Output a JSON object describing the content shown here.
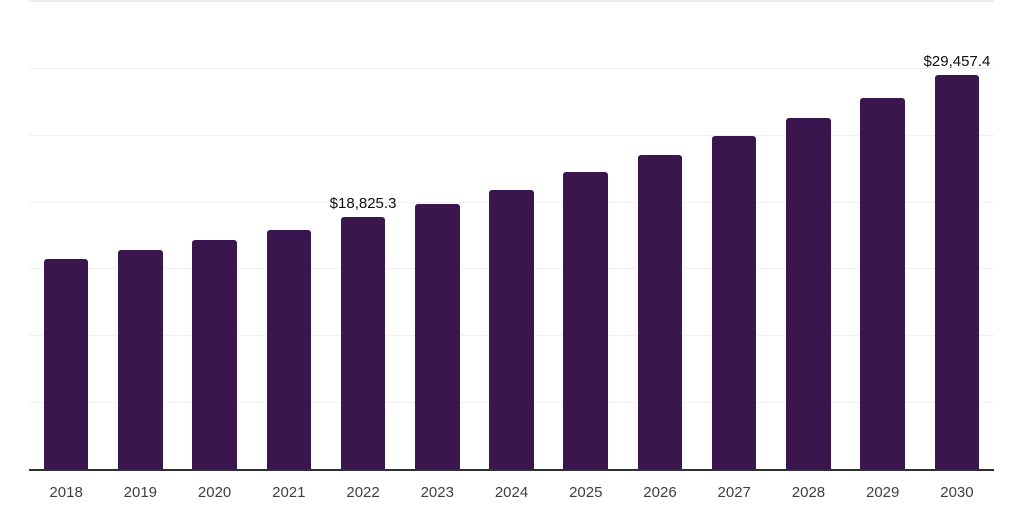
{
  "chart_data": {
    "type": "bar",
    "categories": [
      "2018",
      "2019",
      "2020",
      "2021",
      "2022",
      "2023",
      "2024",
      "2025",
      "2026",
      "2027",
      "2028",
      "2029",
      "2030"
    ],
    "values": [
      15700,
      16400,
      17100,
      17900,
      18825.3,
      19850,
      20900,
      22200,
      23460,
      24930,
      26230,
      27750,
      29457.4
    ],
    "value_labels": [
      null,
      null,
      null,
      null,
      "$18,825.3",
      null,
      null,
      null,
      null,
      null,
      null,
      null,
      "$29,457.4"
    ],
    "labeled_points": [
      {
        "category": "2022",
        "label": "$18,825.3",
        "value": 18825.3
      },
      {
        "category": "2030",
        "label": "$29,457.4",
        "value": 29457.4
      }
    ],
    "xlabel": "",
    "ylabel": "",
    "ylim": [
      0,
      35000
    ],
    "gridline_interval": 5000,
    "grid": true,
    "legend_position": "none",
    "colors": {
      "bar": "#3b154e",
      "axis_line": "#2e2e33",
      "gridline": "#f0f0f3",
      "gridline_top": "#ebebef",
      "data_label": "#0f0f0f",
      "tick_label": "#3f3f41",
      "background": "#ffffff"
    }
  }
}
